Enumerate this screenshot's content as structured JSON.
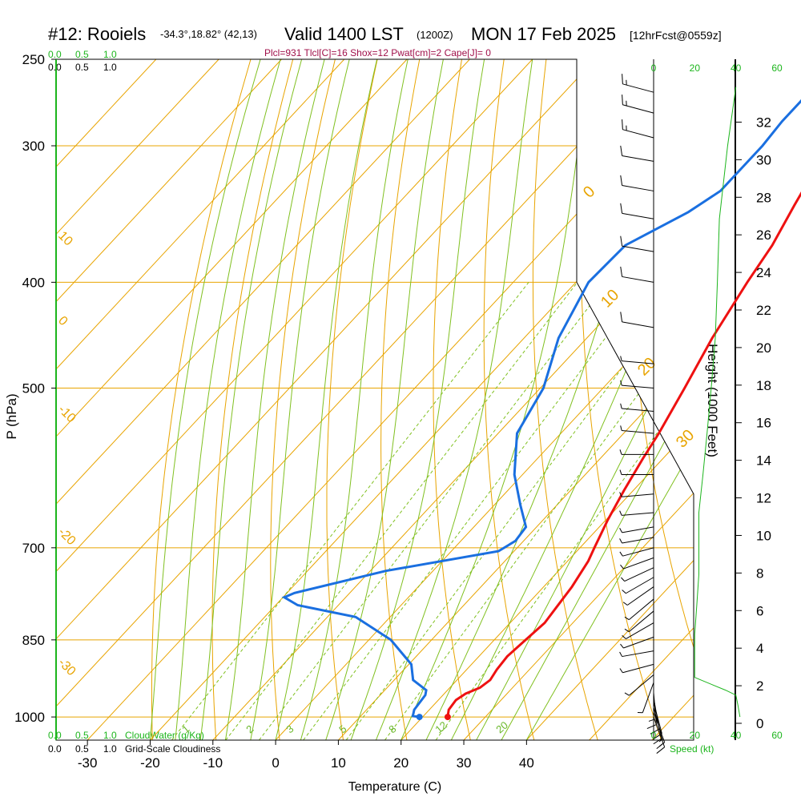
{
  "header": {
    "title": "#12: Rooiels",
    "coords": "-34.3°,18.82° (42,13)",
    "valid": "Valid 1400 LST",
    "utc": "(1200Z)",
    "date": "MON 17 Feb 2025",
    "forecast": "[12hrFcst@0559z]",
    "params": "Plcl=931 Tlcl[C]=16 Shox=12 Pwat[cm]=2 Cape[J]= 0"
  },
  "legends": {
    "cloudwater_top_ticks": [
      "0.0",
      "0.5",
      "1.0"
    ],
    "cloudiness_top_ticks": [
      "0.0",
      "0.5",
      "1.0"
    ],
    "cloudwater_bottom_ticks": [
      "0.0",
      "0.5",
      "1.0"
    ],
    "cloudwater_label": "CloudWater (g/Kg)",
    "cloudiness_bottom_ticks": [
      "0.0",
      "0.5",
      "1.0"
    ],
    "cloudiness_label": "Grid-Scale Cloudiness",
    "speed_label": "Speed (kt)"
  },
  "colors": {
    "temperature": "#ee1111",
    "dewpoint": "#1a6fe0",
    "isotherm": "#e8a400",
    "dry_adiabat": "#e8a400",
    "moist_adiabat": "#80c020",
    "mixing_ratio": "#80c020",
    "wind_speed": "#1cb51c",
    "axis_green": "#1cb51c"
  },
  "chart_data": {
    "type": "line",
    "title": "#12: Rooiels Valid 1400 LST (1200Z) MON 17 Feb 2025",
    "xlabel": "Temperature (C)",
    "ylabel": "P (hPa)",
    "y2label": "Height (1000 Feet)",
    "y_scale": "log",
    "xlim": [
      -35,
      48
    ],
    "ylim": [
      1050,
      250
    ],
    "x_ticks": [
      -30,
      -20,
      -10,
      0,
      10,
      20,
      30,
      40
    ],
    "y_ticks": [
      250,
      300,
      400,
      500,
      700,
      850,
      1000
    ],
    "height_ticks": [
      0,
      2,
      4,
      6,
      8,
      10,
      12,
      14,
      16,
      18,
      20,
      22,
      24,
      26,
      28,
      30,
      32
    ],
    "isotherm_labels": [
      "10",
      "0",
      "-10",
      "-20",
      "-30"
    ],
    "dry_adiabat_labels": [
      "0",
      "10",
      "20",
      "30"
    ],
    "mixing_ratio_labels": [
      "1",
      "2",
      "3",
      "5",
      "8",
      "12",
      "20"
    ],
    "speed_ticks": [
      "0",
      "20",
      "40",
      "60"
    ],
    "series": [
      {
        "name": "Temperature",
        "points": [
          [
            1000,
            24.0
          ],
          [
            985,
            23.1
          ],
          [
            965,
            22.8
          ],
          [
            952,
            23.4
          ],
          [
            940,
            24.8
          ],
          [
            925,
            25.3
          ],
          [
            905,
            24.8
          ],
          [
            880,
            24.5
          ],
          [
            850,
            25.0
          ],
          [
            820,
            25.5
          ],
          [
            795,
            25.1
          ],
          [
            760,
            24.5
          ],
          [
            720,
            23.3
          ],
          [
            700,
            22.3
          ],
          [
            660,
            20.3
          ],
          [
            620,
            18.5
          ],
          [
            580,
            16.8
          ],
          [
            550,
            15.6
          ],
          [
            500,
            13.0
          ],
          [
            450,
            10.0
          ],
          [
            400,
            7.3
          ],
          [
            370,
            5.8
          ],
          [
            340,
            3.4
          ],
          [
            320,
            1.8
          ],
          [
            300,
            0.3
          ],
          [
            280,
            -1.0
          ],
          [
            265,
            -1.9
          ]
        ]
      },
      {
        "name": "Dewpoint",
        "points": [
          [
            1000,
            19.5
          ],
          [
            998,
            18.3
          ],
          [
            985,
            17.6
          ],
          [
            955,
            17.2
          ],
          [
            945,
            16.6
          ],
          [
            925,
            13.0
          ],
          [
            895,
            10.4
          ],
          [
            850,
            3.5
          ],
          [
            810,
            -5.5
          ],
          [
            790,
            -16.5
          ],
          [
            777,
            -19.8
          ],
          [
            770,
            -18.8
          ],
          [
            735,
            -7.5
          ],
          [
            705,
            7.5
          ],
          [
            690,
            8.7
          ],
          [
            670,
            8.3
          ],
          [
            640,
            4.2
          ],
          [
            600,
            -1.3
          ],
          [
            550,
            -7.0
          ],
          [
            500,
            -9.5
          ],
          [
            450,
            -14.5
          ],
          [
            400,
            -18.0
          ],
          [
            370,
            -17.6
          ],
          [
            345,
            -12.5
          ],
          [
            330,
            -10.5
          ],
          [
            300,
            -10.5
          ],
          [
            285,
            -11.0
          ],
          [
            265,
            -11.0
          ]
        ]
      },
      {
        "name": "Wind speed",
        "points": [
          [
            1000,
            42
          ],
          [
            975,
            41
          ],
          [
            955,
            40
          ],
          [
            945,
            35
          ],
          [
            935,
            29
          ],
          [
            920,
            20
          ],
          [
            880,
            20
          ],
          [
            840,
            20
          ],
          [
            790,
            21
          ],
          [
            740,
            22
          ],
          [
            700,
            22
          ],
          [
            650,
            22
          ],
          [
            600,
            24
          ],
          [
            550,
            26
          ],
          [
            500,
            28
          ],
          [
            450,
            30
          ],
          [
            400,
            31
          ],
          [
            350,
            32
          ],
          [
            300,
            36
          ],
          [
            265,
            40
          ]
        ]
      }
    ],
    "wind_barbs": [
      {
        "p": 1000,
        "dir": 160,
        "spd": 15
      },
      {
        "p": 990,
        "dir": 160,
        "spd": 15
      },
      {
        "p": 980,
        "dir": 165,
        "spd": 14
      },
      {
        "p": 970,
        "dir": 165,
        "spd": 13
      },
      {
        "p": 960,
        "dir": 170,
        "spd": 12
      },
      {
        "p": 950,
        "dir": 175,
        "spd": 10
      },
      {
        "p": 940,
        "dir": 180,
        "spd": 8
      },
      {
        "p": 930,
        "dir": 200,
        "spd": 6
      },
      {
        "p": 915,
        "dir": 230,
        "spd": 5
      },
      {
        "p": 895,
        "dir": 255,
        "spd": 5
      },
      {
        "p": 870,
        "dir": 260,
        "spd": 5
      },
      {
        "p": 845,
        "dir": 250,
        "spd": 5
      },
      {
        "p": 820,
        "dir": 240,
        "spd": 5
      },
      {
        "p": 800,
        "dir": 230,
        "spd": 5
      },
      {
        "p": 780,
        "dir": 230,
        "spd": 5
      },
      {
        "p": 760,
        "dir": 235,
        "spd": 5
      },
      {
        "p": 745,
        "dir": 240,
        "spd": 5
      },
      {
        "p": 730,
        "dir": 245,
        "spd": 5
      },
      {
        "p": 715,
        "dir": 250,
        "spd": 5
      },
      {
        "p": 700,
        "dir": 255,
        "spd": 5
      },
      {
        "p": 685,
        "dir": 260,
        "spd": 5
      },
      {
        "p": 670,
        "dir": 260,
        "spd": 5
      },
      {
        "p": 650,
        "dir": 265,
        "spd": 5
      },
      {
        "p": 625,
        "dir": 265,
        "spd": 5
      },
      {
        "p": 600,
        "dir": 270,
        "spd": 5
      },
      {
        "p": 575,
        "dir": 270,
        "spd": 5
      },
      {
        "p": 550,
        "dir": 275,
        "spd": 5
      },
      {
        "p": 525,
        "dir": 275,
        "spd": 5
      },
      {
        "p": 500,
        "dir": 275,
        "spd": 5
      },
      {
        "p": 475,
        "dir": 275,
        "spd": 5
      },
      {
        "p": 440,
        "dir": 280,
        "spd": 10
      },
      {
        "p": 400,
        "dir": 280,
        "spd": 10
      },
      {
        "p": 375,
        "dir": 280,
        "spd": 10
      },
      {
        "p": 350,
        "dir": 280,
        "spd": 10
      },
      {
        "p": 330,
        "dir": 280,
        "spd": 10
      },
      {
        "p": 310,
        "dir": 280,
        "spd": 10
      },
      {
        "p": 295,
        "dir": 285,
        "spd": 15
      },
      {
        "p": 280,
        "dir": 285,
        "spd": 15
      },
      {
        "p": 268,
        "dir": 285,
        "spd": 15
      }
    ]
  }
}
